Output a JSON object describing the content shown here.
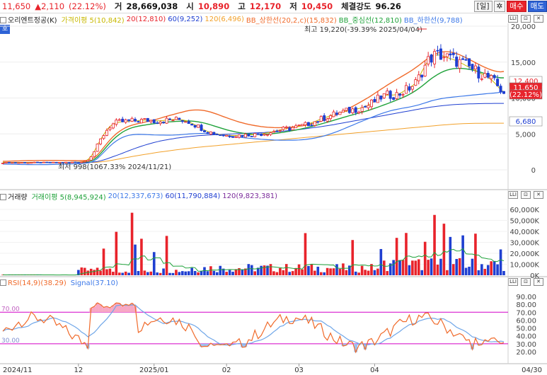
{
  "infobar": {
    "price": "11,650",
    "change": "▲2,110",
    "change_pct": "(22.12%)",
    "volume_label": "거",
    "volume": "28,669,038",
    "open_label": "시",
    "open": "10,890",
    "high_label": "고",
    "high": "12,170",
    "low_label": "저",
    "low": "10,450",
    "strength_label": "체결강도",
    "strength": "96.26",
    "period_button": "[일]",
    "settings_icon": "gear-icon",
    "buy_button": "매수",
    "sell_button": "매도"
  },
  "price_pane": {
    "stock_name": "오리엔트정공(K)",
    "legend": [
      "가격이평 5(10,842)",
      "20(12,810)",
      "60(9,252)",
      "120(6,496)",
      "BB_상한선(20,2,c)(15,832)",
      "BB_중심선(12,810)",
      "BB_하한선(9,788)"
    ],
    "ticks": [
      "20,000",
      "15,000",
      "10,000",
      "5,000",
      "0"
    ],
    "high_note": "최고 19,220(-39.39% 2025/04/04)",
    "low_note": "최저 998(1067.33% 2024/11/21)",
    "last_high_label": "12,400",
    "last_price_label": "11,650",
    "last_pct_label": "(22.12%)",
    "bb_low_label": "6,680",
    "side_tag": "호"
  },
  "volume_pane": {
    "legend": [
      "거래량",
      "거래이평 5(8,945,924)",
      "20(12,337,673)",
      "60(11,790,884)",
      "120(9,823,381)"
    ],
    "ticks": [
      "60,000K",
      "50,000K",
      "40,000K",
      "30,000K",
      "20,000K",
      "10,000K",
      "0K"
    ]
  },
  "rsi_pane": {
    "legend": [
      "RSI(14,9)(38.29)",
      "Signal(37.10)"
    ],
    "ticks": [
      "90.00",
      "80.00",
      "70.00",
      "60.00",
      "50.00",
      "40.00",
      "30.00",
      "20.00"
    ],
    "level_70": "70.00",
    "level_30": "30.00"
  },
  "x_axis": {
    "labels": [
      "2024/11",
      "12",
      "2025/01",
      "02",
      "03",
      "04",
      "04/30"
    ]
  },
  "colors": {
    "up": "#e8232b",
    "down": "#1f3fd1",
    "ma5": "#c8b800",
    "ma20": "#e8232b",
    "ma60": "#1f3fd1",
    "ma120": "#f2a12a",
    "bb_upper": "#f06a2a",
    "bb_mid": "#1fa23a",
    "bb_lower": "#3c78e8",
    "rsi": "#f06a2a",
    "signal": "#6fa6e8",
    "level": "#d400c8"
  },
  "chart_data": {
    "type": "candlestick",
    "series": [
      {
        "name": "가격이평 5",
        "values": [
          1000,
          1000,
          1001,
          1001,
          1002,
          1002,
          1003,
          1004,
          1004,
          1005,
          1006,
          1008,
          1008,
          1009,
          1010,
          1012,
          1015,
          1018,
          1022,
          1025,
          1030,
          1036,
          1045,
          1058,
          1078,
          1110,
          1190,
          1420,
          1890,
          2550,
          3400,
          4200,
          4900,
          5550,
          6050,
          6350,
          6550,
          6650,
          6700,
          6750,
          6780,
          6800,
          6830,
          6860,
          6880,
          6900,
          6900,
          6880,
          6840,
          6820,
          6840,
          6880,
          6920,
          6960,
          7000,
          7020,
          7000,
          6950,
          6860,
          6700,
          6480,
          6260,
          6050,
          5800,
          5550,
          5350,
          5220,
          5100,
          5000,
          4900,
          4820,
          4800,
          4780,
          4770,
          4780,
          4800,
          4820,
          4860,
          4880,
          4900,
          4920,
          4960,
          5010,
          5080,
          5160,
          5250,
          5350,
          5460,
          5560,
          5650,
          5730,
          5800,
          5880,
          5960,
          6050,
          6150,
          6270,
          6400,
          6550,
          6720,
          6900,
          7050,
          7220,
          7380,
          7540,
          7700,
          7840,
          7960,
          8070,
          8150,
          8250,
          8350,
          8430,
          8530,
          8660,
          8820,
          9000,
          9260,
          9550,
          9830,
          10120,
          10280,
          10400,
          10420,
          10420,
          10480,
          10620,
          10880,
          11160,
          11400,
          11700,
          12100,
          12800,
          13700,
          14450,
          15200,
          15650,
          15900,
          16000,
          15950,
          15800,
          15650,
          15480,
          15350,
          15150,
          14950,
          14750,
          14500,
          14280,
          14050,
          13800,
          13550,
          13350,
          13100,
          12850,
          12550,
          12150,
          11650,
          11150,
          10842
        ]
      },
      {
        "name": "20",
        "values": [
          1000,
          1000,
          1000,
          1001,
          1001,
          1001,
          1002,
          1002,
          1003,
          1003,
          1004,
          1004,
          1005,
          1006,
          1006,
          1007,
          1008,
          1009,
          1010,
          1012,
          1014,
          1016,
          1020,
          1025,
          1032,
          1045,
          1070,
          1120,
          1230,
          1450,
          1800,
          2250,
          2750,
          3250,
          3750,
          4200,
          4600,
          4950,
          5250,
          5500,
          5700,
          5860,
          5980,
          6080,
          6160,
          6230,
          6300,
          6360,
          6420,
          6480,
          6540,
          6600,
          6640,
          6680,
          6710,
          6740,
          6760,
          6780,
          6800,
          6800,
          6780,
          6740,
          6680,
          6600,
          6500,
          6380,
          6260,
          6120,
          5980,
          5840,
          5700,
          5580,
          5460,
          5360,
          5260,
          5180,
          5110,
          5050,
          5010,
          4980,
          4960,
          4950,
          4950,
          4960,
          4980,
          5010,
          5050,
          5100,
          5160,
          5230,
          5300,
          5380,
          5460,
          5540,
          5630,
          5720,
          5820,
          5920,
          6030,
          6140,
          6260,
          6380,
          6500,
          6630,
          6760,
          6890,
          7020,
          7150,
          7280,
          7410,
          7540,
          7660,
          7780,
          7900,
          8020,
          8140,
          8270,
          8410,
          8560,
          8720,
          8880,
          9040,
          9200,
          9370,
          9540,
          9710,
          9890,
          10080,
          10280,
          10500,
          10750,
          11020,
          11320,
          11650,
          12000,
          12350,
          12700,
          13000,
          13280,
          13520,
          13720,
          13880,
          14000,
          14080,
          14120,
          14130,
          14110,
          14060,
          13990,
          13900,
          13790,
          13670,
          13540,
          13400,
          13260,
          13120,
          12990,
          12880,
          12810,
          12810
        ]
      },
      {
        "name": "60",
        "values": [
          1000,
          1000,
          1000,
          1000,
          1000,
          1001,
          1001,
          1001,
          1001,
          1002,
          1002,
          1002,
          1003,
          1003,
          1003,
          1004,
          1004,
          1005,
          1005,
          1006,
          1007,
          1008,
          1009,
          1010,
          1012,
          1015,
          1020,
          1030,
          1050,
          1090,
          1160,
          1260,
          1380,
          1520,
          1670,
          1830,
          1990,
          2150,
          2320,
          2490,
          2660,
          2830,
          2990,
          3140,
          3290,
          3430,
          3560,
          3680,
          3800,
          3910,
          4010,
          4100,
          4180,
          4260,
          4330,
          4400,
          4460,
          4520,
          4570,
          4620,
          4670,
          4710,
          4750,
          4780,
          4810,
          4840,
          4860,
          4880,
          4900,
          4920,
          4940,
          4960,
          4980,
          5000,
          5020,
          5040,
          5060,
          5080,
          5100,
          5120,
          5140,
          5160,
          5180,
          5200,
          5230,
          5260,
          5290,
          5320,
          5350,
          5390,
          5430,
          5470,
          5510,
          5560,
          5610,
          5660,
          5710,
          5770,
          5830,
          5890,
          5950,
          6010,
          6080,
          6150,
          6220,
          6290,
          6370,
          6450,
          6530,
          6610,
          6690,
          6770,
          6850,
          6930,
          7010,
          7090,
          7170,
          7250,
          7330,
          7410,
          7490,
          7570,
          7650,
          7730,
          7810,
          7890,
          7970,
          8050,
          8130,
          8210,
          8290,
          8370,
          8450,
          8530,
          8600,
          8670,
          8740,
          8800,
          8860,
          8910,
          8960,
          9000,
          9040,
          9070,
          9100,
          9120,
          9140,
          9160,
          9180,
          9190,
          9200,
          9210,
          9220,
          9230,
          9240,
          9245,
          9248,
          9250,
          9251,
          9252
        ]
      },
      {
        "name": "120",
        "values": [
          1000,
          1000,
          1000,
          1000,
          1000,
          1000,
          1000,
          1000,
          1001,
          1001,
          1001,
          1001,
          1001,
          1001,
          1002,
          1002,
          1002,
          1002,
          1003,
          1003,
          1003,
          1004,
          1004,
          1005,
          1005,
          1006,
          1008,
          1012,
          1020,
          1035,
          1060,
          1100,
          1150,
          1210,
          1280,
          1360,
          1440,
          1520,
          1600,
          1680,
          1760,
          1840,
          1920,
          2000,
          2070,
          2140,
          2210,
          2280,
          2350,
          2420,
          2480,
          2540,
          2600,
          2660,
          2720,
          2780,
          2840,
          2890,
          2940,
          2990,
          3040,
          3090,
          3140,
          3180,
          3220,
          3260,
          3300,
          3340,
          3380,
          3420,
          3460,
          3500,
          3540,
          3580,
          3620,
          3660,
          3700,
          3740,
          3780,
          3820,
          3860,
          3900,
          3940,
          3980,
          4020,
          4060,
          4100,
          4140,
          4180,
          4220,
          4260,
          4300,
          4340,
          4380,
          4420,
          4460,
          4500,
          4540,
          4580,
          4620,
          4660,
          4700,
          4740,
          4780,
          4820,
          4860,
          4900,
          4940,
          4980,
          5020,
          5060,
          5100,
          5140,
          5180,
          5220,
          5260,
          5300,
          5340,
          5380,
          5420,
          5460,
          5500,
          5540,
          5580,
          5620,
          5660,
          5700,
          5740,
          5780,
          5820,
          5860,
          5900,
          5940,
          5980,
          6020,
          6060,
          6100,
          6140,
          6180,
          6220,
          6260,
          6290,
          6320,
          6350,
          6380,
          6400,
          6420,
          6440,
          6455,
          6465,
          6475,
          6480,
          6485,
          6488,
          6490,
          6492,
          6494,
          6495,
          6496,
          6496
        ]
      }
    ]
  }
}
